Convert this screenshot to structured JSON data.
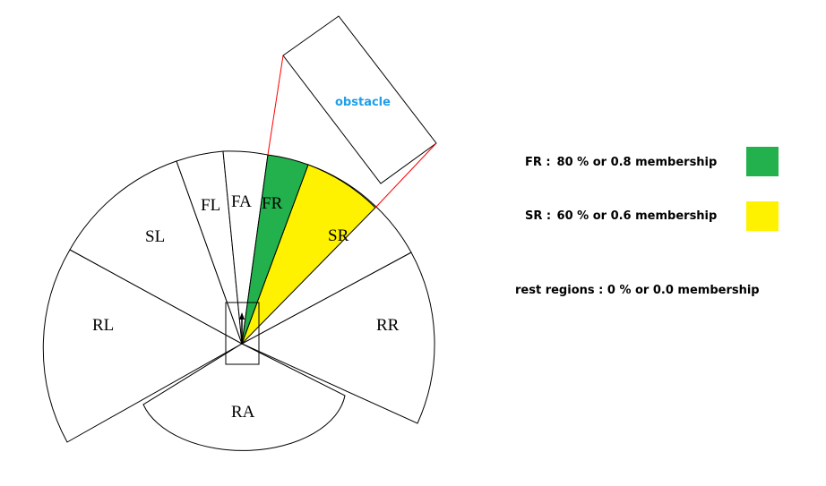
{
  "diagram": {
    "regions": {
      "FL": "FL",
      "FA": "FA",
      "FR": "FR",
      "SL": "SL",
      "SR": "SR",
      "RL": "RL",
      "RR": "RR",
      "RA": "RA"
    },
    "obstacle_label": "obstacle"
  },
  "legend": {
    "fr": {
      "key": "FR :",
      "text": "80 % or 0.8 membership"
    },
    "sr": {
      "key": "SR :",
      "text": "60 % or 0.6 membership"
    },
    "rest": "rest regions : 0 % or 0.0 membership"
  },
  "colors": {
    "fr": "#22B14C",
    "sr": "#FFF200",
    "obstacle_text": "#1E9FE8",
    "sight_lines": "#FF0000",
    "outline": "#000000"
  }
}
